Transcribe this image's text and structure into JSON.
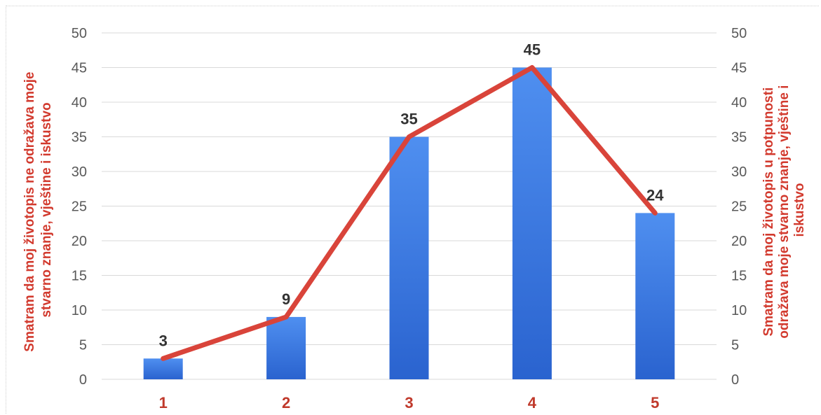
{
  "chart_data": {
    "type": "bar",
    "categories": [
      "1",
      "2",
      "3",
      "4",
      "5"
    ],
    "series": [
      {
        "values": [
          3,
          9,
          35,
          45,
          24
        ],
        "color": "#3a78e0",
        "kind": "bar"
      },
      {
        "values": [
          3,
          9,
          35,
          45,
          24
        ],
        "color": "#d9443a",
        "kind": "line"
      }
    ],
    "data_labels": [
      "3",
      "9",
      "35",
      "45",
      "24"
    ],
    "y_ticks": [
      "0",
      "5",
      "10",
      "15",
      "20",
      "25",
      "30",
      "35",
      "40",
      "45",
      "50"
    ],
    "ylim": [
      0,
      50
    ],
    "y2lim": [
      0,
      50
    ],
    "ylabel_left": [
      "Smatram da moj životopis ne odražava moje",
      "stvarno znanje, vještine i iskustvo"
    ],
    "ylabel_right": [
      "Smatram da moj životopis u potpunosti",
      "odražava moje stvarno znanje, vještine i",
      "iskustvo"
    ],
    "grid": true,
    "legend": "none",
    "colors": {
      "bar": "#3a78e0",
      "line": "#d9443a",
      "category_labels": "#c0392b",
      "axis_titles": "#d23a2e"
    }
  }
}
